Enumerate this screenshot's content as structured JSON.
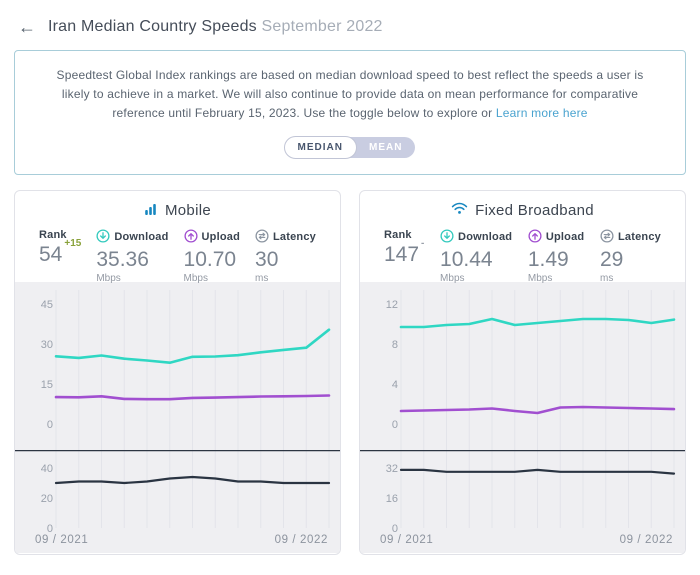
{
  "header": {
    "back_glyph": "←",
    "title": "Iran Median Country Speeds",
    "subtitle": "September 2022"
  },
  "notice": {
    "text": "Speedtest Global Index rankings are based on median download speed to best reflect the speeds a user is likely to achieve in a market. We will also continue to provide data on mean performance for comparative reference until February 15, 2023. Use the toggle below to explore or ",
    "link_text": "Learn more here"
  },
  "toggle": {
    "options": [
      "MEDIAN",
      "MEAN"
    ],
    "selected": "MEDIAN"
  },
  "colors": {
    "download_teal": "#2fd7c3",
    "upload_purple": "#a14fd0",
    "latency_navy": "#2a3442",
    "brand_blue": "#1787c0",
    "link_blue": "#4aa3cf",
    "positive_change_green": "#8aa23b",
    "chart_background": "#efeff2"
  },
  "panels": [
    {
      "title": "Mobile",
      "icon": "mobile-signal-bars-icon",
      "stats": [
        {
          "label": "Rank",
          "value": "54",
          "change": "+15",
          "unit": ""
        },
        {
          "label": "Download",
          "value": "35.36",
          "unit": "Mbps",
          "icon": "download-circle-icon"
        },
        {
          "label": "Upload",
          "value": "10.70",
          "unit": "Mbps",
          "icon": "upload-circle-icon"
        },
        {
          "label": "Latency",
          "value": "30",
          "unit": "ms",
          "icon": "latency-circle-icon"
        }
      ]
    },
    {
      "title": "Fixed Broadband",
      "icon": "wifi-icon",
      "stats": [
        {
          "label": "Rank",
          "value": "147",
          "change": "-",
          "unit": ""
        },
        {
          "label": "Download",
          "value": "10.44",
          "unit": "Mbps",
          "icon": "download-circle-icon"
        },
        {
          "label": "Upload",
          "value": "1.49",
          "unit": "Mbps",
          "icon": "upload-circle-icon"
        },
        {
          "label": "Latency",
          "value": "29",
          "unit": "ms",
          "icon": "latency-circle-icon"
        }
      ]
    }
  ],
  "chart_data": [
    {
      "type": "line",
      "title": "Mobile median download and upload speed over time",
      "ylabel": "Mbps",
      "x": [
        "09/2021",
        "10/2021",
        "11/2021",
        "12/2021",
        "01/2022",
        "02/2022",
        "03/2022",
        "04/2022",
        "05/2022",
        "06/2022",
        "07/2022",
        "08/2022",
        "09/2022"
      ],
      "x_axis_labels": [
        "09 / 2021",
        "09 / 2022"
      ],
      "ylim": [
        0,
        45
      ],
      "yticks": [
        45,
        30,
        15,
        0
      ],
      "grid": true,
      "series": [
        {
          "name": "Download (Mbps)",
          "color": "#2fd7c3",
          "values": [
            25.4,
            24.8,
            25.7,
            24.5,
            23.8,
            23.0,
            25.2,
            25.3,
            25.8,
            26.9,
            27.8,
            28.6,
            35.36
          ]
        },
        {
          "name": "Upload (Mbps)",
          "color": "#a14fd0",
          "values": [
            10.1,
            10.0,
            10.4,
            9.4,
            9.3,
            9.3,
            9.8,
            9.9,
            10.1,
            10.3,
            10.4,
            10.5,
            10.7
          ]
        }
      ]
    },
    {
      "type": "line",
      "title": "Mobile median latency over time",
      "ylabel": "ms",
      "x": [
        "09/2021",
        "10/2021",
        "11/2021",
        "12/2021",
        "01/2022",
        "02/2022",
        "03/2022",
        "04/2022",
        "05/2022",
        "06/2022",
        "07/2022",
        "08/2022",
        "09/2022"
      ],
      "x_axis_labels": [
        "09 / 2021",
        "09 / 2022"
      ],
      "ylim": [
        0,
        40
      ],
      "yticks": [
        40,
        20,
        0
      ],
      "grid": true,
      "series": [
        {
          "name": "Latency (ms)",
          "color": "#2a3442",
          "values": [
            30,
            31,
            31,
            30,
            31,
            33,
            34,
            33,
            31,
            31,
            30,
            30,
            30
          ]
        }
      ]
    },
    {
      "type": "line",
      "title": "Fixed broadband median download and upload speed over time",
      "ylabel": "Mbps",
      "x": [
        "09/2021",
        "10/2021",
        "11/2021",
        "12/2021",
        "01/2022",
        "02/2022",
        "03/2022",
        "04/2022",
        "05/2022",
        "06/2022",
        "07/2022",
        "08/2022",
        "09/2022"
      ],
      "x_axis_labels": [
        "09 / 2021",
        "09 / 2022"
      ],
      "ylim": [
        0,
        12
      ],
      "yticks": [
        12,
        8,
        4,
        0
      ],
      "grid": true,
      "series": [
        {
          "name": "Download (Mbps)",
          "color": "#2fd7c3",
          "values": [
            9.7,
            9.7,
            9.9,
            10.0,
            10.5,
            9.9,
            10.1,
            10.3,
            10.5,
            10.5,
            10.4,
            10.1,
            10.44
          ]
        },
        {
          "name": "Upload (Mbps)",
          "color": "#a14fd0",
          "values": [
            1.3,
            1.35,
            1.4,
            1.45,
            1.55,
            1.3,
            1.1,
            1.65,
            1.7,
            1.65,
            1.6,
            1.55,
            1.49
          ]
        }
      ]
    },
    {
      "type": "line",
      "title": "Fixed broadband median latency over time",
      "ylabel": "ms",
      "x": [
        "09/2021",
        "10/2021",
        "11/2021",
        "12/2021",
        "01/2022",
        "02/2022",
        "03/2022",
        "04/2022",
        "05/2022",
        "06/2022",
        "07/2022",
        "08/2022",
        "09/2022"
      ],
      "x_axis_labels": [
        "09 / 2021",
        "09 / 2022"
      ],
      "ylim": [
        0,
        32
      ],
      "yticks": [
        32,
        16,
        0
      ],
      "grid": true,
      "series": [
        {
          "name": "Latency (ms)",
          "color": "#2a3442",
          "values": [
            31,
            31,
            30,
            30,
            30,
            30,
            31,
            30,
            30,
            30,
            30,
            30,
            29
          ]
        }
      ]
    }
  ]
}
